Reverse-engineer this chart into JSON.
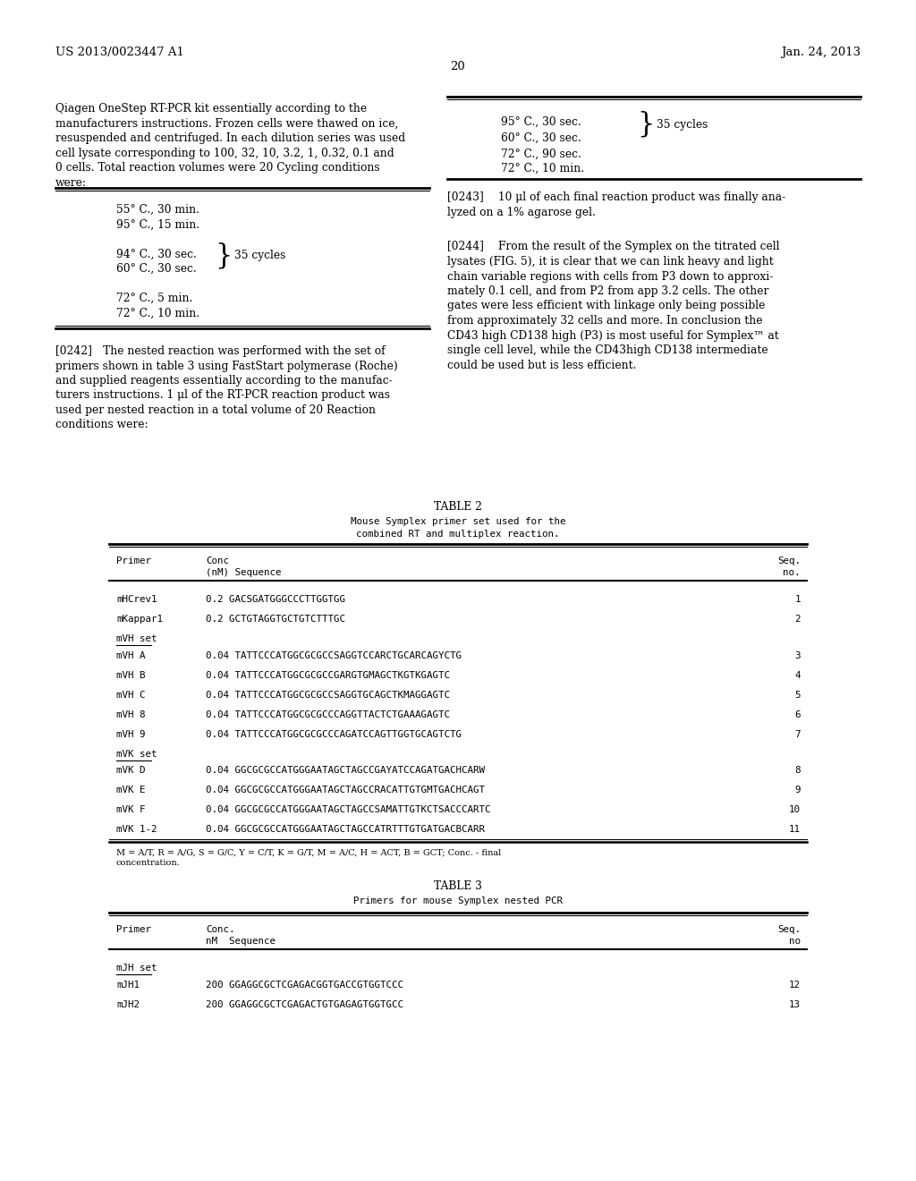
{
  "background_color": "#ffffff",
  "page_number": "20",
  "header_left": "US 2013/0023447 A1",
  "header_right": "Jan. 24, 2013",
  "body_font_size": 8.8,
  "mono_font_size": 7.8,
  "small_font_size": 7.0,
  "left_paragraph1": "Qiagen OneStep RT-PCR kit essentially according to the manufacturers instructions. Frozen cells were thawed on ice, resuspended and centrifuged. In each dilution series was used cell lysate corresponding to 100, 32, 10, 3.2, 1, 0.32, 0.1 and 0 cells. Total reaction volumes were 20 Cycling conditions were:",
  "right_p1_lines": [
    "95° C., 30 sec.",
    "60° C., 30 sec.",
    "72° C., 90 sec.",
    "72° C., 10 min."
  ],
  "right_p1_brace_label": "35 cycles",
  "left_box_lines": [
    "55° C., 30 min.",
    "95° C., 15 min.",
    "94° C., 30 sec.",
    "60° C., 30 sec.",
    "72° C., 5 min.",
    "72° C., 10 min."
  ],
  "left_box_brace_label": "35 cycles",
  "paragraph242": "[0242] The nested reaction was performed with the set of primers shown in table 3 using FastStart polymerase (Roche) and supplied reagents essentially according to the manufacturers instructions. 1 μl of the RT-PCR reaction product was used per nested reaction in a total volume of 20 Reaction conditions were:",
  "paragraph243": "[0243]  10 μl of each final reaction product was finally analyzed on a 1% agarose gel.",
  "paragraph244": "[0244]  From the result of the Symplex on the titrated cell lysates (FIG. 5), it is clear that we can link heavy and light chain variable regions with cells from P3 down to approximately 0.1 cell, and from P2 from app 3.2 cells. The other gates were less efficient with linkage only being possible from approximately 32 cells and more. In conclusion the CD43 high CD138 high (P3) is most useful for Symplex™ at single cell level, while the CD43high CD138 intermediate could be used but is less efficient.",
  "table2_title": "TABLE 2",
  "table2_subtitle1": "Mouse Symplex primer set used for the",
  "table2_subtitle2": "combined RT and multiplex reaction.",
  "table2_rows": [
    [
      "mHCrev1",
      "0.2",
      "GACSGATGGGCCCTTGGTGG",
      "1"
    ],
    [
      "mKappar1",
      "0.2",
      "GCTGTAGGTGCTGTCTTTGC",
      "2"
    ],
    [
      "mVH set",
      "",
      "",
      ""
    ],
    [
      "mVH A",
      "0.04",
      "TATTCCCATGGCGCGCCSAGGTCCARCTGCARCAGYCTG",
      "3"
    ],
    [
      "mVH B",
      "0.04",
      "TATTCCCATGGCGCGCCGARGTGMAGCTKGTKGAGTC",
      "4"
    ],
    [
      "mVH C",
      "0.04",
      "TATTCCCATGGCGCGCCSAGGTGCAGCTKMAGGAGTC",
      "5"
    ],
    [
      "mVH 8",
      "0.04",
      "TATTCCCATGGCGCGCCCAGGTTACTCTGAAAGAGTC",
      "6"
    ],
    [
      "mVH 9",
      "0.04",
      "TATTCCCATGGCGCGCCCAGATCCAGTTGGTGCAGTCTG",
      "7"
    ],
    [
      "mVK set",
      "",
      "",
      ""
    ],
    [
      "mVK D",
      "0.04",
      "GGCGCGCCATGGGAATAGCTAGCCGAYATCCAGATGACHCARW",
      "8"
    ],
    [
      "mVK E",
      "0.04",
      "GGCGCGCCATGGGAATAGCTAGCCRACATTGTGMTGACHCAGT",
      "9"
    ],
    [
      "mVK F",
      "0.04",
      "GGCGCGCCATGGGAATAGCTAGCCSAMATTGTKCTSACCCARTC",
      "10"
    ],
    [
      "mVK 1-2",
      "0.04",
      "GGCGCGCCATGGGAATAGCTAGCCATRTTTGTGATGACBCARR",
      "11"
    ]
  ],
  "table2_footnote1": "M = A/T, R = A/G, S = G/C, Y = C/T, K = G/T, M = A/C, H = ACT, B = GCT; Conc. - final",
  "table2_footnote2": "concentration.",
  "table3_title": "TABLE 3",
  "table3_subtitle": "Primers for mouse Symplex nested PCR",
  "table3_rows": [
    [
      "mJH set",
      "",
      "",
      ""
    ],
    [
      "mJH1",
      "200",
      "GGAGGCGCTCGAGACGGTGACCGTGGTCCC",
      "12"
    ],
    [
      "mJH2",
      "200",
      "GGAGGCGCTCGAGACTGTGAGAGTGGTGCC",
      "13"
    ]
  ]
}
